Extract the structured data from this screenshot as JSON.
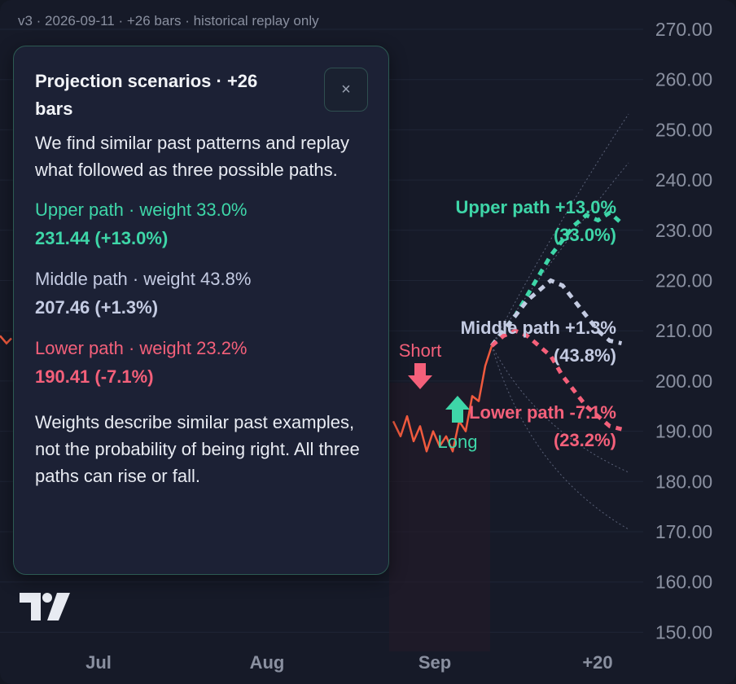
{
  "version_bar": "v3 · 2026-09-11 · +26 bars · historical replay only",
  "popup": {
    "title": "Projection scenarios · +26 bars",
    "close_label": "×",
    "intro": "We find similar past patterns and replay what followed as three possible paths.",
    "upper": {
      "label": "Upper path · weight 33.0%",
      "value": "231.44 (+13.0%)"
    },
    "middle": {
      "label": "Middle path · weight 43.8%",
      "value": "207.46 (+1.3%)"
    },
    "lower": {
      "label": "Lower path · weight 23.2%",
      "value": "190.41 (-7.1%)"
    },
    "note": "Weights describe similar past examples, not the probability of being right. All three paths can rise or fall."
  },
  "colors": {
    "upper": "#3ed6a8",
    "middle": "#c4cbe2",
    "lower": "#f4607a",
    "price_line": "#f05a3e",
    "background": "#161a28"
  },
  "icons": {
    "logo": "tradingview-logo-icon",
    "close": "close-icon"
  },
  "chart_data": {
    "type": "line",
    "y_axis": {
      "ticks": [
        "270.00",
        "260.00",
        "250.00",
        "240.00",
        "230.00",
        "220.00",
        "210.00",
        "200.00",
        "190.00",
        "180.00",
        "170.00",
        "160.00",
        "150.00"
      ],
      "range": [
        150,
        270
      ],
      "position": "right"
    },
    "x_axis": {
      "ticks": [
        "Jul",
        "Aug",
        "Sep",
        "+20"
      ]
    },
    "grid": true,
    "price_series": {
      "visible_x": [
        483,
        492,
        500,
        508,
        516,
        524,
        532,
        540,
        548,
        556,
        564,
        572,
        580,
        588,
        596,
        604
      ],
      "values": [
        192,
        189,
        193,
        188,
        191,
        186,
        190,
        187,
        189,
        186,
        192,
        190,
        197,
        196,
        203,
        207
      ]
    },
    "markers": [
      {
        "label": "Short",
        "direction": "down",
        "color": "#f4607a"
      },
      {
        "label": "Long",
        "direction": "up",
        "color": "#3ed6a8"
      }
    ],
    "scenarios": [
      {
        "name": "Upper path",
        "label_line1": "Upper path +13.0%",
        "label_line2": "(33.0%)",
        "end_value": 231.44,
        "change_pct": 13.0,
        "weight_pct": 33.0,
        "values": [
          207,
          210,
          213,
          217,
          221,
          225,
          228,
          231,
          233,
          232,
          233.5,
          231.4
        ]
      },
      {
        "name": "Middle path",
        "label_line1": "Middle path +1.3%",
        "label_line2": "(43.8%)",
        "end_value": 207.46,
        "change_pct": 1.3,
        "weight_pct": 43.8,
        "values": [
          207,
          210,
          213,
          216,
          218,
          220,
          219,
          216,
          213,
          210,
          208,
          207.5
        ]
      },
      {
        "name": "Lower path",
        "label_line1": "Lower path -7.1%",
        "label_line2": "(23.2%)",
        "end_value": 190.41,
        "change_pct": -7.1,
        "weight_pct": 23.2,
        "values": [
          207,
          209,
          210,
          209,
          207,
          205,
          201,
          198,
          195,
          193,
          191,
          190.4
        ]
      }
    ]
  }
}
